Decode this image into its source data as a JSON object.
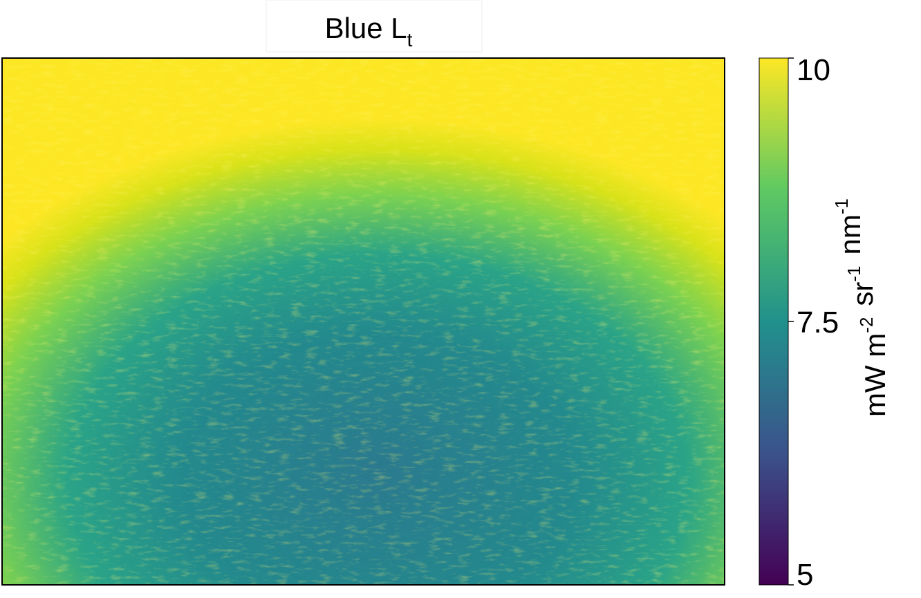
{
  "chart_data": {
    "type": "image",
    "title": {
      "text": "Blue L",
      "subscript": "t"
    },
    "colormap": [
      "#440154",
      "#3b528b",
      "#21918c",
      "#5ec962",
      "#fde725"
    ],
    "clim": [
      5,
      10
    ],
    "colorbar_ticks": [
      5,
      7.5,
      10
    ],
    "colorbar_label": [
      {
        "base": "mW m",
        "sup": "-2"
      },
      {
        "base": "sr",
        "sup": "-1"
      },
      {
        "base": "nm",
        "sup": "-1"
      }
    ]
  }
}
